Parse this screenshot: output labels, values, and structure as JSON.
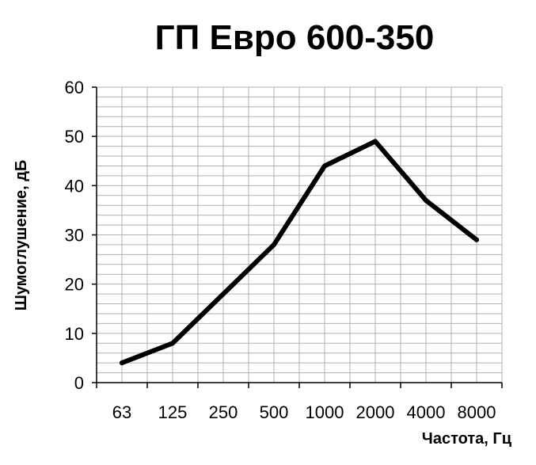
{
  "chart_data": {
    "type": "line",
    "title": "ГП Евро 600-350",
    "xlabel": "Частота, Гц",
    "ylabel": "Шумоглушение, дБ",
    "categories": [
      "63",
      "125",
      "250",
      "500",
      "1000",
      "2000",
      "4000",
      "8000"
    ],
    "series": [
      {
        "values": [
          4,
          8,
          18,
          28,
          44,
          49,
          37,
          29
        ]
      }
    ],
    "ylim": [
      0,
      60
    ],
    "yticks": [
      "0",
      "10",
      "20",
      "30",
      "40",
      "50",
      "60"
    ],
    "grid": true,
    "legend": "none",
    "line_color": "#000000",
    "grid_color": "#b0b0b0"
  }
}
